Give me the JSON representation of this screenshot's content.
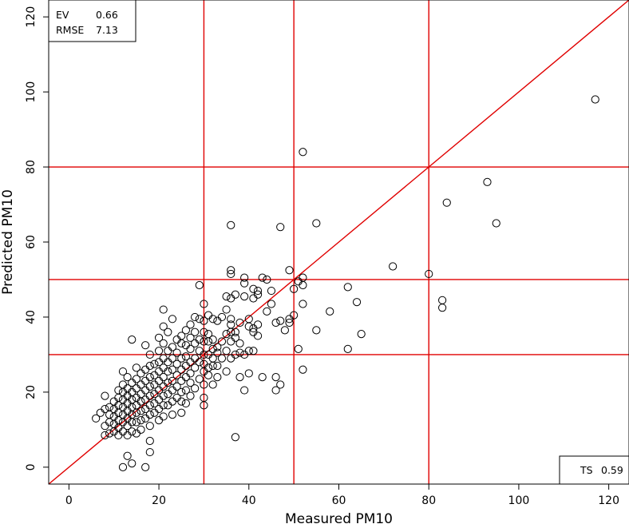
{
  "chart_data": {
    "type": "scatter",
    "title": "",
    "xlabel": "Measured PM10",
    "ylabel": "Predicted PM10",
    "xlim": [
      -4.5,
      124.5
    ],
    "ylim": [
      -4.5,
      124.5
    ],
    "x_ticks": [
      0,
      20,
      40,
      60,
      80,
      100,
      120
    ],
    "y_ticks": [
      0,
      20,
      40,
      60,
      80,
      100,
      120
    ],
    "reference_lines": {
      "vertical": [
        30,
        50,
        80
      ],
      "horizontal": [
        30,
        50,
        80
      ],
      "identity_line": true,
      "color": "#e00000"
    },
    "stats": {
      "ev_label": "EV",
      "ev_value": "0.66",
      "rmse_label": "RMSE",
      "rmse_value": "7.13",
      "ts_label": "TS",
      "ts_value": "0.59"
    },
    "marker": "open-circle",
    "series": [
      {
        "points": [
          [
            117,
            98
          ],
          [
            93,
            76
          ],
          [
            84,
            70.5
          ],
          [
            95,
            65
          ],
          [
            83,
            44.5
          ],
          [
            83,
            42.5
          ],
          [
            80,
            51.5
          ],
          [
            72,
            53.5
          ],
          [
            65,
            35.5
          ],
          [
            64,
            44
          ],
          [
            62,
            48
          ],
          [
            62,
            31.5
          ],
          [
            58,
            41.5
          ],
          [
            55,
            65
          ],
          [
            55,
            36.5
          ],
          [
            52,
            84
          ],
          [
            52,
            50.5
          ],
          [
            52,
            48.5
          ],
          [
            52,
            43.5
          ],
          [
            52,
            26
          ],
          [
            51,
            49.5
          ],
          [
            51,
            31.5
          ],
          [
            50,
            47.5
          ],
          [
            50,
            40.5
          ],
          [
            49,
            52.5
          ],
          [
            49,
            39.5
          ],
          [
            49,
            38.5
          ],
          [
            48,
            36.5
          ],
          [
            47,
            64
          ],
          [
            47,
            39
          ],
          [
            47,
            22
          ],
          [
            46,
            38.5
          ],
          [
            46,
            24
          ],
          [
            46,
            20.5
          ],
          [
            45,
            43.5
          ],
          [
            45,
            47
          ],
          [
            44,
            50
          ],
          [
            44,
            41.5
          ],
          [
            43,
            50.5
          ],
          [
            43,
            24
          ],
          [
            42,
            47
          ],
          [
            42,
            46
          ],
          [
            42,
            38
          ],
          [
            42,
            35
          ],
          [
            41,
            47.5
          ],
          [
            41,
            45
          ],
          [
            41,
            37
          ],
          [
            41,
            36
          ],
          [
            41,
            31
          ],
          [
            40,
            39.5
          ],
          [
            40,
            37.5
          ],
          [
            40,
            31
          ],
          [
            40,
            25
          ],
          [
            39,
            50.5
          ],
          [
            39,
            49
          ],
          [
            39,
            45.5
          ],
          [
            39,
            30
          ],
          [
            39,
            20.5
          ],
          [
            38,
            38.5
          ],
          [
            38,
            33
          ],
          [
            38,
            30.5
          ],
          [
            38,
            24
          ],
          [
            37,
            46
          ],
          [
            37,
            36
          ],
          [
            37,
            34.5
          ],
          [
            37,
            30
          ],
          [
            37,
            8
          ],
          [
            36,
            64.5
          ],
          [
            36,
            52.5
          ],
          [
            36,
            51.5
          ],
          [
            36,
            45
          ],
          [
            36,
            39.5
          ],
          [
            36,
            38
          ],
          [
            36,
            36
          ],
          [
            36,
            33.5
          ],
          [
            36,
            29
          ],
          [
            35,
            45.5
          ],
          [
            35,
            42
          ],
          [
            35,
            35.5
          ],
          [
            35,
            31
          ],
          [
            35,
            25.5
          ],
          [
            34,
            40
          ],
          [
            34,
            33.5
          ],
          [
            34,
            29
          ],
          [
            33,
            39
          ],
          [
            33,
            32
          ],
          [
            33,
            30.5
          ],
          [
            33,
            27
          ],
          [
            33,
            24
          ],
          [
            32,
            39.5
          ],
          [
            32,
            34
          ],
          [
            32,
            31.5
          ],
          [
            32,
            29
          ],
          [
            32,
            27
          ],
          [
            32,
            22
          ],
          [
            31,
            40.5
          ],
          [
            31,
            35.5
          ],
          [
            31,
            33.5
          ],
          [
            31,
            30
          ],
          [
            31,
            26.5
          ],
          [
            31,
            24.5
          ],
          [
            30,
            43.5
          ],
          [
            30,
            39
          ],
          [
            30,
            36
          ],
          [
            30,
            33.5
          ],
          [
            30,
            30
          ],
          [
            30,
            27.5
          ],
          [
            30,
            25.5
          ],
          [
            30,
            22
          ],
          [
            30,
            18.5
          ],
          [
            30,
            16.5
          ],
          [
            29,
            48.5
          ],
          [
            29,
            39.5
          ],
          [
            29,
            34
          ],
          [
            29,
            31
          ],
          [
            29,
            28
          ],
          [
            29,
            23.5
          ],
          [
            28,
            40
          ],
          [
            28,
            36
          ],
          [
            28,
            33
          ],
          [
            28,
            29
          ],
          [
            28,
            26.5
          ],
          [
            28,
            21
          ],
          [
            27,
            38
          ],
          [
            27,
            34.5
          ],
          [
            27,
            31.5
          ],
          [
            27,
            28
          ],
          [
            27,
            25
          ],
          [
            27,
            22.5
          ],
          [
            27,
            19
          ],
          [
            26,
            36.5
          ],
          [
            26,
            32.5
          ],
          [
            26,
            29.5
          ],
          [
            26,
            27
          ],
          [
            26,
            24
          ],
          [
            26,
            20.5
          ],
          [
            26,
            17
          ],
          [
            25,
            35
          ],
          [
            25,
            33
          ],
          [
            25,
            29
          ],
          [
            25,
            26
          ],
          [
            25,
            23
          ],
          [
            25,
            20
          ],
          [
            25,
            17.5
          ],
          [
            25,
            14.5
          ],
          [
            24,
            34
          ],
          [
            24,
            30.5
          ],
          [
            24,
            27.5
          ],
          [
            24,
            24.5
          ],
          [
            24,
            21.5
          ],
          [
            24,
            18.5
          ],
          [
            23,
            39.5
          ],
          [
            23,
            32
          ],
          [
            23,
            29
          ],
          [
            23,
            26
          ],
          [
            23,
            23
          ],
          [
            23,
            20.5
          ],
          [
            23,
            17.5
          ],
          [
            23,
            14
          ],
          [
            22,
            36
          ],
          [
            22,
            31
          ],
          [
            22,
            28
          ],
          [
            22,
            25.5
          ],
          [
            22,
            22.5
          ],
          [
            22,
            19.5
          ],
          [
            22,
            16.5
          ],
          [
            21,
            42
          ],
          [
            21,
            37.5
          ],
          [
            21,
            33
          ],
          [
            21,
            29
          ],
          [
            21,
            26.5
          ],
          [
            21,
            24
          ],
          [
            21,
            21.5
          ],
          [
            21,
            19
          ],
          [
            21,
            16.5
          ],
          [
            21,
            13.5
          ],
          [
            20,
            34.5
          ],
          [
            20,
            31
          ],
          [
            20,
            28
          ],
          [
            20,
            25.5
          ],
          [
            20,
            23
          ],
          [
            20,
            20.5
          ],
          [
            20,
            18
          ],
          [
            20,
            15.5
          ],
          [
            20,
            12.5
          ],
          [
            19,
            27.5
          ],
          [
            19,
            24.5
          ],
          [
            19,
            22
          ],
          [
            19,
            19.5
          ],
          [
            19,
            17
          ],
          [
            19,
            14.5
          ],
          [
            18,
            30
          ],
          [
            18,
            27
          ],
          [
            18,
            24
          ],
          [
            18,
            21.5
          ],
          [
            18,
            19
          ],
          [
            18,
            16.5
          ],
          [
            18,
            14
          ],
          [
            18,
            11
          ],
          [
            18,
            7
          ],
          [
            18,
            4
          ],
          [
            17,
            32.5
          ],
          [
            17,
            26
          ],
          [
            17,
            23
          ],
          [
            17,
            20.5
          ],
          [
            17,
            18
          ],
          [
            17,
            15.5
          ],
          [
            17,
            13
          ],
          [
            17,
            0
          ],
          [
            16,
            25
          ],
          [
            16,
            22
          ],
          [
            16,
            19.5
          ],
          [
            16,
            17.5
          ],
          [
            16,
            15
          ],
          [
            16,
            12.5
          ],
          [
            16,
            10
          ],
          [
            15,
            26.5
          ],
          [
            15,
            23.5
          ],
          [
            15,
            21
          ],
          [
            15,
            18.5
          ],
          [
            15,
            16.5
          ],
          [
            15,
            14.5
          ],
          [
            15,
            12
          ],
          [
            15,
            9
          ],
          [
            14,
            34
          ],
          [
            14,
            22.5
          ],
          [
            14,
            20
          ],
          [
            14,
            18
          ],
          [
            14,
            16
          ],
          [
            14,
            14
          ],
          [
            14,
            12
          ],
          [
            14,
            9.5
          ],
          [
            14,
            1
          ],
          [
            13,
            24
          ],
          [
            13,
            21
          ],
          [
            13,
            19
          ],
          [
            13,
            17
          ],
          [
            13,
            15
          ],
          [
            13,
            13
          ],
          [
            13,
            11
          ],
          [
            13,
            8.5
          ],
          [
            13,
            3
          ],
          [
            12,
            25.5
          ],
          [
            12,
            22
          ],
          [
            12,
            20
          ],
          [
            12,
            18
          ],
          [
            12,
            16
          ],
          [
            12,
            14
          ],
          [
            12,
            12
          ],
          [
            12,
            9.5
          ],
          [
            12,
            0
          ],
          [
            11,
            20.5
          ],
          [
            11,
            18.5
          ],
          [
            11,
            16.5
          ],
          [
            11,
            14.5
          ],
          [
            11,
            12.5
          ],
          [
            11,
            10.5
          ],
          [
            11,
            8.5
          ],
          [
            10,
            17.5
          ],
          [
            10,
            15.5
          ],
          [
            10,
            13.5
          ],
          [
            10,
            11.5
          ],
          [
            10,
            9.5
          ],
          [
            9,
            16
          ],
          [
            9,
            14
          ],
          [
            9,
            12
          ],
          [
            9,
            9
          ],
          [
            8,
            19
          ],
          [
            8,
            15.5
          ],
          [
            8,
            11
          ],
          [
            8,
            8.5
          ],
          [
            7,
            14.5
          ],
          [
            6,
            13
          ]
        ]
      }
    ]
  }
}
